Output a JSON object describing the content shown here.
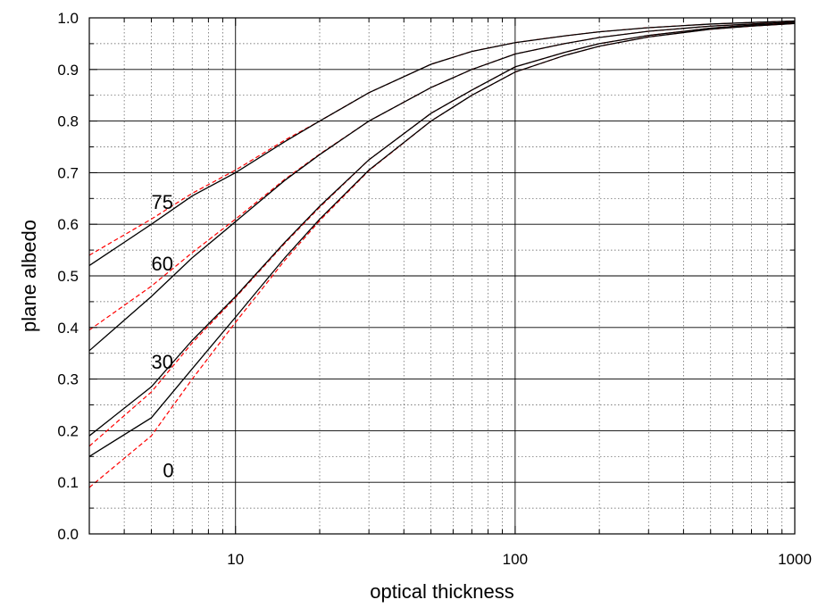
{
  "chart_data": {
    "type": "line",
    "title": "",
    "xlabel": "optical thickness",
    "ylabel": "plane albedo",
    "xscale": "log",
    "xlim": [
      3,
      1000
    ],
    "ylim": [
      0.0,
      1.0
    ],
    "grid": "on",
    "x_ticks": [
      {
        "value": 10,
        "label": "10"
      },
      {
        "value": 100,
        "label": "100"
      },
      {
        "value": 1000,
        "label": "1000"
      }
    ],
    "y_ticks": [
      {
        "value": 0.0,
        "label": "0.0"
      },
      {
        "value": 0.1,
        "label": "0.1"
      },
      {
        "value": 0.2,
        "label": "0.2"
      },
      {
        "value": 0.3,
        "label": "0.3"
      },
      {
        "value": 0.4,
        "label": "0.4"
      },
      {
        "value": 0.5,
        "label": "0.5"
      },
      {
        "value": 0.6,
        "label": "0.6"
      },
      {
        "value": 0.7,
        "label": "0.7"
      },
      {
        "value": 0.8,
        "label": "0.8"
      },
      {
        "value": 0.9,
        "label": "0.9"
      },
      {
        "value": 1.0,
        "label": "1.0"
      }
    ],
    "series": [
      {
        "name": "75",
        "label_at": [
          5,
          0.63
        ],
        "solid_color": "#000000",
        "dashed_color": "#ff0000",
        "solid": [
          [
            3,
            0.52
          ],
          [
            5,
            0.6
          ],
          [
            7,
            0.655
          ],
          [
            10,
            0.7
          ],
          [
            15,
            0.76
          ],
          [
            20,
            0.8
          ],
          [
            30,
            0.855
          ],
          [
            50,
            0.91
          ],
          [
            70,
            0.935
          ],
          [
            100,
            0.952
          ],
          [
            150,
            0.965
          ],
          [
            200,
            0.973
          ],
          [
            300,
            0.981
          ],
          [
            500,
            0.988
          ],
          [
            700,
            0.991
          ],
          [
            1000,
            0.994
          ]
        ],
        "dashed": [
          [
            3,
            0.54
          ],
          [
            5,
            0.61
          ],
          [
            7,
            0.66
          ],
          [
            10,
            0.705
          ],
          [
            15,
            0.763
          ],
          [
            20,
            0.8
          ],
          [
            30,
            0.855
          ],
          [
            50,
            0.91
          ],
          [
            70,
            0.935
          ],
          [
            100,
            0.952
          ],
          [
            150,
            0.965
          ],
          [
            200,
            0.973
          ],
          [
            300,
            0.981
          ],
          [
            500,
            0.988
          ],
          [
            700,
            0.991
          ],
          [
            1000,
            0.994
          ]
        ]
      },
      {
        "name": "60",
        "label_at": [
          5,
          0.51
        ],
        "solid_color": "#000000",
        "dashed_color": "#ff0000",
        "solid": [
          [
            3,
            0.355
          ],
          [
            5,
            0.46
          ],
          [
            7,
            0.535
          ],
          [
            10,
            0.605
          ],
          [
            15,
            0.685
          ],
          [
            20,
            0.735
          ],
          [
            30,
            0.8
          ],
          [
            50,
            0.865
          ],
          [
            70,
            0.9
          ],
          [
            100,
            0.93
          ],
          [
            150,
            0.95
          ],
          [
            200,
            0.962
          ],
          [
            300,
            0.974
          ],
          [
            500,
            0.984
          ],
          [
            700,
            0.988
          ],
          [
            1000,
            0.992
          ]
        ],
        "dashed": [
          [
            3,
            0.395
          ],
          [
            5,
            0.48
          ],
          [
            7,
            0.545
          ],
          [
            10,
            0.61
          ],
          [
            15,
            0.687
          ],
          [
            20,
            0.736
          ],
          [
            30,
            0.8
          ],
          [
            50,
            0.865
          ],
          [
            70,
            0.9
          ],
          [
            100,
            0.93
          ],
          [
            150,
            0.95
          ],
          [
            200,
            0.962
          ],
          [
            300,
            0.974
          ],
          [
            500,
            0.984
          ],
          [
            700,
            0.988
          ],
          [
            1000,
            0.992
          ]
        ]
      },
      {
        "name": "30",
        "label_at": [
          5,
          0.32
        ],
        "solid_color": "#000000",
        "dashed_color": "#ff0000",
        "solid": [
          [
            3,
            0.19
          ],
          [
            5,
            0.285
          ],
          [
            7,
            0.375
          ],
          [
            10,
            0.46
          ],
          [
            15,
            0.565
          ],
          [
            20,
            0.635
          ],
          [
            30,
            0.725
          ],
          [
            50,
            0.815
          ],
          [
            70,
            0.86
          ],
          [
            100,
            0.905
          ],
          [
            150,
            0.933
          ],
          [
            200,
            0.95
          ],
          [
            300,
            0.966
          ],
          [
            500,
            0.98
          ],
          [
            700,
            0.986
          ],
          [
            1000,
            0.99
          ]
        ],
        "dashed": [
          [
            3,
            0.17
          ],
          [
            5,
            0.275
          ],
          [
            7,
            0.37
          ],
          [
            10,
            0.458
          ],
          [
            15,
            0.563
          ],
          [
            20,
            0.633
          ],
          [
            30,
            0.725
          ],
          [
            50,
            0.815
          ],
          [
            70,
            0.86
          ],
          [
            100,
            0.905
          ],
          [
            150,
            0.933
          ],
          [
            200,
            0.95
          ],
          [
            300,
            0.966
          ],
          [
            500,
            0.98
          ],
          [
            700,
            0.986
          ],
          [
            1000,
            0.99
          ]
        ]
      },
      {
        "name": "0",
        "label_at": [
          5.5,
          0.11
        ],
        "solid_color": "#000000",
        "dashed_color": "#ff0000",
        "solid": [
          [
            3,
            0.15
          ],
          [
            5,
            0.225
          ],
          [
            7,
            0.32
          ],
          [
            10,
            0.42
          ],
          [
            15,
            0.535
          ],
          [
            20,
            0.61
          ],
          [
            30,
            0.705
          ],
          [
            50,
            0.8
          ],
          [
            70,
            0.85
          ],
          [
            100,
            0.895
          ],
          [
            150,
            0.927
          ],
          [
            200,
            0.945
          ],
          [
            300,
            0.963
          ],
          [
            500,
            0.978
          ],
          [
            700,
            0.984
          ],
          [
            1000,
            0.989
          ]
        ],
        "dashed": [
          [
            3,
            0.09
          ],
          [
            5,
            0.19
          ],
          [
            7,
            0.3
          ],
          [
            10,
            0.41
          ],
          [
            15,
            0.53
          ],
          [
            20,
            0.607
          ],
          [
            30,
            0.704
          ],
          [
            50,
            0.8
          ],
          [
            70,
            0.85
          ],
          [
            100,
            0.895
          ],
          [
            150,
            0.927
          ],
          [
            200,
            0.945
          ],
          [
            300,
            0.963
          ],
          [
            500,
            0.978
          ],
          [
            700,
            0.984
          ],
          [
            1000,
            0.989
          ]
        ]
      }
    ]
  }
}
